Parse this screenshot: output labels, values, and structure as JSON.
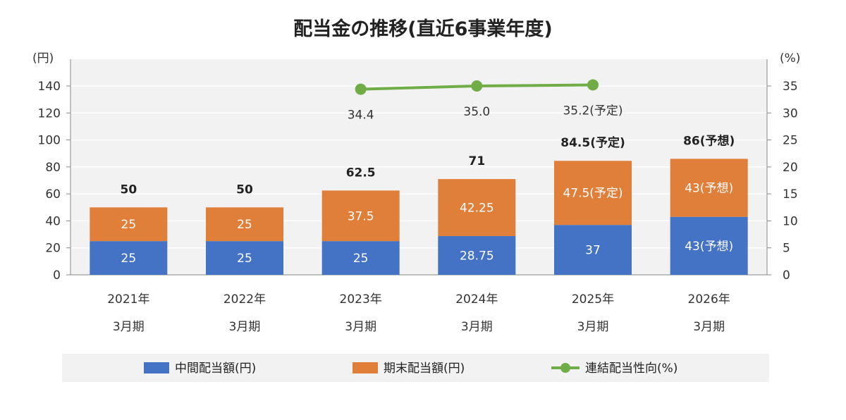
{
  "chart_data": {
    "type": "bar",
    "title": "配当金の推移(直近6事業年度)",
    "categories": [
      [
        "2021年",
        "3月期"
      ],
      [
        "2022年",
        "3月期"
      ],
      [
        "2023年",
        "3月期"
      ],
      [
        "2024年",
        "3月期"
      ],
      [
        "2025年",
        "3月期"
      ],
      [
        "2026年",
        "3月期"
      ]
    ],
    "y_left_unit": "(円)",
    "y_right_unit": "(%)",
    "ylim": [
      0,
      140
    ],
    "y2lim": [
      0,
      35
    ],
    "yticks": [
      0,
      20,
      40,
      60,
      80,
      100,
      120,
      140
    ],
    "y2ticks": [
      0,
      5,
      10,
      15,
      20,
      25,
      30,
      35
    ],
    "grid": true,
    "legend_position": "bottom",
    "series": [
      {
        "name": "中間配当額(円)",
        "kind": "bar-stacked",
        "color": "#4472C4",
        "values": [
          25,
          25,
          25,
          28.75,
          37,
          43
        ],
        "labels": [
          "25",
          "25",
          "25",
          "28.75",
          "37",
          "43(予想)"
        ]
      },
      {
        "name": "期末配当額(円)",
        "kind": "bar-stacked",
        "color": "#E07F3A",
        "values": [
          25,
          25,
          37.5,
          42.25,
          47.5,
          43
        ],
        "labels": [
          "25",
          "25",
          "37.5",
          "42.25",
          "47.5(予定)",
          "43(予想)"
        ]
      },
      {
        "name": "連結配当性向(%)",
        "kind": "line",
        "axis": "right",
        "color": "#70AD47",
        "values": [
          null,
          null,
          34.4,
          35.0,
          35.2,
          null
        ],
        "labels": [
          "",
          "",
          "34.4",
          "35.0",
          "35.2(予定)",
          ""
        ]
      }
    ],
    "totals": [
      50,
      50,
      62.5,
      71,
      84.5,
      86
    ],
    "total_labels": [
      "50",
      "50",
      "62.5",
      "71",
      "84.5(予定)",
      "86(予想)"
    ]
  }
}
